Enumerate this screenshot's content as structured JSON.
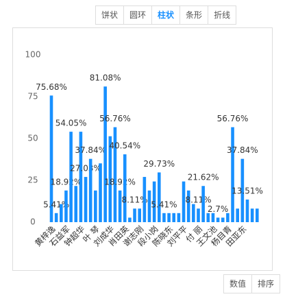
{
  "toolbar": {
    "buttons": [
      "饼状",
      "圆环",
      "柱状",
      "条形",
      "折线"
    ],
    "active": 2
  },
  "chart_data": {
    "type": "bar",
    "color": "#1890ff",
    "categories": [
      "黄梓逸",
      null,
      null,
      "石益军",
      null,
      null,
      "钟超华",
      null,
      null,
      "叶 琴",
      null,
      null,
      "刘成华",
      null,
      null,
      "肖田英",
      null,
      null,
      "谢志刚",
      null,
      null,
      "段小岗",
      null,
      null,
      "陈晓东",
      null,
      null,
      "刘平平",
      null,
      null,
      "付 丽",
      null,
      null,
      "王文池",
      null,
      null,
      "杨目青",
      null,
      null,
      "田亚东",
      null,
      null,
      null
    ],
    "values": [
      75.68,
      5.41,
      10.81,
      18.92,
      54.05,
      21.62,
      54.05,
      27.03,
      37.84,
      18.92,
      35.14,
      81.08,
      51.35,
      56.76,
      18.92,
      40.54,
      2.7,
      8.11,
      8.11,
      27.03,
      18.92,
      24.32,
      29.73,
      5.41,
      5.41,
      5.41,
      5.41,
      24.32,
      18.92,
      10.81,
      8.11,
      21.62,
      5.41,
      5.41,
      2.7,
      2.7,
      5.41,
      56.76,
      8.11,
      37.84,
      13.51,
      8.11,
      8.11
    ],
    "value_labels": [
      "75.68%",
      "5.41%",
      null,
      "18.92%",
      "54.05%",
      null,
      null,
      "27.03%",
      "37.84%",
      null,
      null,
      "81.08%",
      null,
      "56.76%",
      "18.92%",
      "40.54%",
      null,
      "8.11%",
      null,
      null,
      null,
      null,
      "29.73%",
      "5.41%",
      null,
      null,
      null,
      null,
      null,
      null,
      "8.11%",
      "21.62%",
      null,
      null,
      "2.7%",
      null,
      null,
      "56.76%",
      null,
      "37.84%",
      "13.51%",
      null,
      null
    ],
    "ylim": [
      0,
      100
    ],
    "yticks": [
      0,
      25,
      50,
      75,
      100
    ]
  },
  "footer": {
    "buttons": [
      "数值",
      "排序"
    ]
  }
}
